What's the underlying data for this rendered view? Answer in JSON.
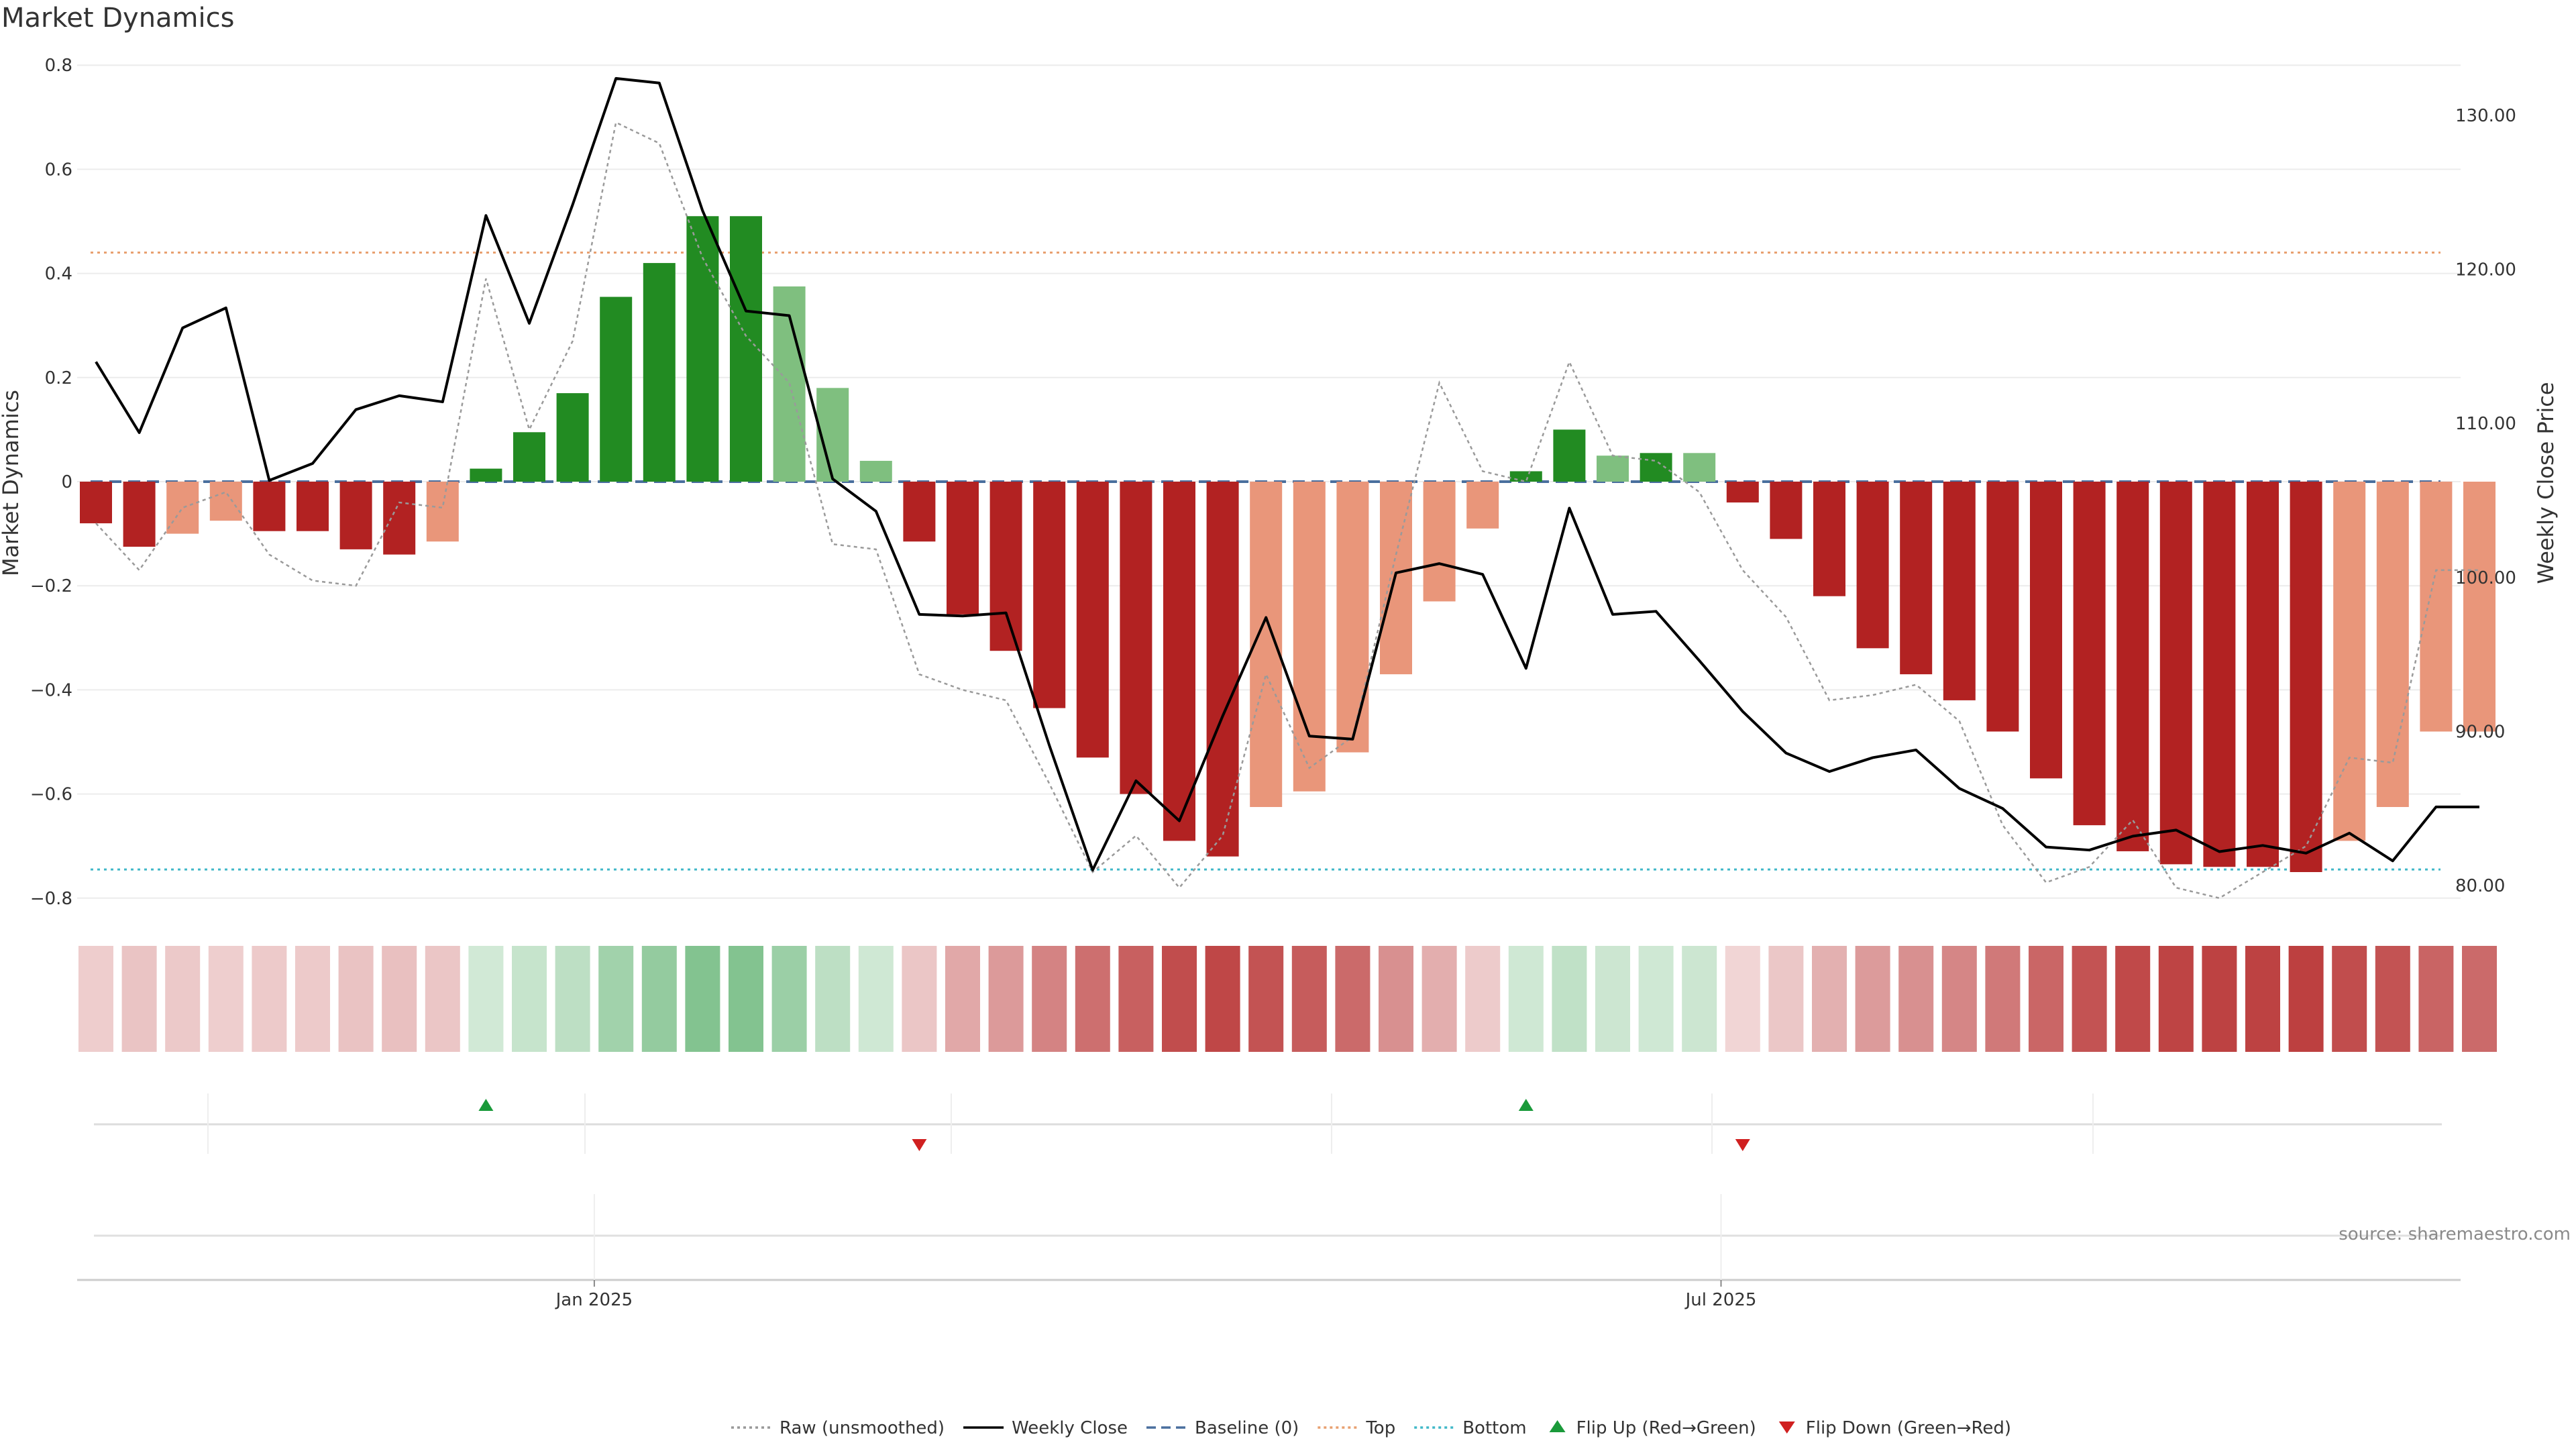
{
  "title": "Market Dynamics",
  "source": "source: sharemaestro.com",
  "chart_data": {
    "type": "bar",
    "title": "Market Dynamics",
    "ylabel_left": "Market Dynamics",
    "ylabel_right": "Weekly Close Price",
    "ylim_left": [
      -0.8,
      0.8
    ],
    "ylim_right": [
      80,
      132
    ],
    "yticks_left": [
      "0.8",
      "0.6",
      "0.4",
      "0.2",
      "0",
      "−0.2",
      "−0.4",
      "−0.6",
      "−0.8"
    ],
    "yticks_right": [
      "130.00",
      "120.00",
      "110.00",
      "100.00",
      "90.00",
      "80.00"
    ],
    "x_ticks": [
      "Jan 2025",
      "Jul 2025"
    ],
    "x_ticks_index": [
      11.5,
      37.5
    ],
    "n_weeks": 56,
    "grid": true,
    "legend_position": "bottom-center",
    "series": [
      {
        "name": "Weekly Close",
        "type": "line",
        "values": [
          114,
          109.4,
          116.2,
          117.5,
          106.3,
          107.4,
          110.9,
          111.8,
          111.4,
          123.5,
          116.5,
          124.2,
          132.4,
          132.1,
          123.8,
          117.3,
          117,
          106.4,
          104.3,
          97.6,
          97.5,
          97.7,
          89.1,
          81,
          86.8,
          84.2,
          91,
          97.4,
          89.7,
          89.5,
          100.3,
          100.9,
          100.2,
          94.1,
          104.5,
          97.6,
          97.8,
          94.6,
          91.3,
          88.6,
          87.4,
          88.3,
          88.8,
          86.3,
          85,
          82.5,
          82.3,
          83.2,
          83.6,
          82.2,
          82.6,
          82.1,
          83.4,
          81.6,
          85.1,
          85.1
        ]
      },
      {
        "name": "Raw (unsmoothed)",
        "type": "line",
        "values": [
          -0.08,
          -0.17,
          -0.05,
          -0.02,
          -0.14,
          -0.19,
          -0.2,
          -0.04,
          -0.05,
          0.39,
          0.1,
          0.27,
          0.69,
          0.65,
          0.43,
          0.28,
          0.19,
          -0.12,
          -0.13,
          -0.37,
          -0.4,
          -0.42,
          -0.58,
          -0.75,
          -0.68,
          -0.78,
          -0.68,
          -0.37,
          -0.55,
          -0.49,
          -0.14,
          0.19,
          0.02,
          0.0,
          0.23,
          0.05,
          0.04,
          -0.02,
          -0.17,
          -0.26,
          -0.42,
          -0.41,
          -0.39,
          -0.46,
          -0.66,
          -0.77,
          -0.74,
          -0.65,
          -0.78,
          -0.8,
          -0.75,
          -0.7,
          -0.53,
          -0.54,
          -0.17,
          -0.17
        ]
      },
      {
        "name": "Market Dynamics",
        "type": "bar",
        "values": [
          -0.08,
          -0.125,
          -0.1,
          -0.075,
          -0.095,
          -0.095,
          -0.13,
          -0.14,
          -0.115,
          0.025,
          0.095,
          0.17,
          0.355,
          0.42,
          0.51,
          0.51,
          0.375,
          0.18,
          0.04,
          -0.115,
          -0.255,
          -0.325,
          -0.435,
          -0.53,
          -0.6,
          -0.69,
          -0.72,
          -0.625,
          -0.595,
          -0.52,
          -0.37,
          -0.23,
          -0.09,
          0.02,
          0.1,
          0.05,
          0.055,
          0.055,
          -0.04,
          -0.11,
          -0.22,
          -0.32,
          -0.37,
          -0.42,
          -0.48,
          -0.57,
          -0.66,
          -0.71,
          -0.735,
          -0.74,
          -0.74,
          -0.75,
          -0.69,
          -0.625,
          -0.48,
          -0.48
        ],
        "shade": [
          "dark",
          "dark",
          "light",
          "light",
          "dark",
          "dark",
          "dark",
          "dark",
          "light",
          "dark",
          "dark",
          "dark",
          "dark",
          "dark",
          "dark",
          "dark",
          "light",
          "light",
          "light",
          "dark",
          "dark",
          "dark",
          "dark",
          "dark",
          "dark",
          "dark",
          "dark",
          "light",
          "light",
          "light",
          "light",
          "light",
          "light",
          "dark",
          "dark",
          "light",
          "dark",
          "light",
          "dark",
          "dark",
          "dark",
          "dark",
          "dark",
          "dark",
          "dark",
          "dark",
          "dark",
          "dark",
          "dark",
          "dark",
          "dark",
          "dark",
          "light",
          "light",
          "light",
          "light"
        ]
      },
      {
        "name": "Baseline (0)",
        "type": "hline",
        "value": 0
      },
      {
        "name": "Top",
        "type": "hline",
        "value": 0.44
      },
      {
        "name": "Bottom",
        "type": "hline",
        "value": -0.745
      },
      {
        "name": "Flip Up (Red→Green)",
        "type": "marker",
        "week_index": [
          9,
          33
        ]
      },
      {
        "name": "Flip Down (Green→Red)",
        "type": "marker",
        "week_index": [
          19,
          38
        ]
      }
    ],
    "heat_strip": [
      -0.08,
      -0.125,
      -0.1,
      -0.075,
      -0.095,
      -0.095,
      -0.13,
      -0.14,
      -0.115,
      0.09,
      0.15,
      0.2,
      0.35,
      0.42,
      0.51,
      0.51,
      0.38,
      0.2,
      0.1,
      -0.115,
      -0.255,
      -0.325,
      -0.435,
      -0.53,
      -0.6,
      -0.69,
      -0.72,
      -0.66,
      -0.62,
      -0.55,
      -0.37,
      -0.23,
      -0.09,
      0.1,
      0.18,
      0.12,
      0.1,
      0.12,
      -0.04,
      -0.11,
      -0.22,
      -0.32,
      -0.37,
      -0.42,
      -0.48,
      -0.57,
      -0.66,
      -0.71,
      -0.735,
      -0.74,
      -0.74,
      -0.75,
      -0.69,
      -0.66,
      -0.58,
      -0.55
    ]
  },
  "legend": [
    {
      "label": "Raw (unsmoothed)",
      "symbol": "line-dotted",
      "color": "#999999"
    },
    {
      "label": "Weekly Close",
      "symbol": "line-solid",
      "color": "#000000"
    },
    {
      "label": "Baseline (0)",
      "symbol": "line-dashed",
      "color": "#4a6f9e"
    },
    {
      "label": "Top",
      "symbol": "line-dotted",
      "color": "#e8a070"
    },
    {
      "label": "Bottom",
      "symbol": "line-dotted",
      "color": "#40b8c8"
    },
    {
      "label": "Flip Up (Red→Green)",
      "symbol": "triangle-up",
      "color": "#1a9a3a"
    },
    {
      "label": "Flip Down (Green→Red)",
      "symbol": "triangle-down",
      "color": "#d02020"
    }
  ],
  "colors": {
    "green_dark": "#228b22",
    "green_light": "#7fbf7f",
    "red_dark": "#b22222",
    "red_light": "#e9967a",
    "heat_green": "#3ca150",
    "heat_red": "#b22222"
  }
}
